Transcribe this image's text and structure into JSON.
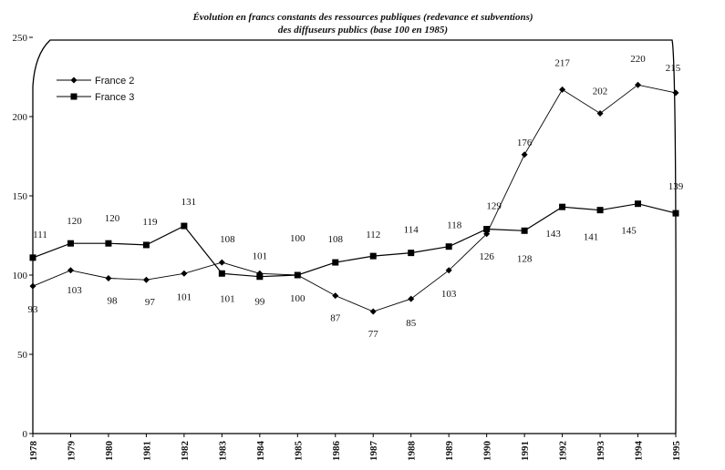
{
  "chart_data": {
    "type": "line",
    "title": "Évolution en francs constants des ressources publiques (redevance et subventions)",
    "subtitle": "des diffuseurs publics (base 100 en 1985)",
    "xlabel": "",
    "ylabel": "",
    "ylim": [
      0,
      250
    ],
    "yticks": [
      "0",
      "50",
      "100",
      "150",
      "200",
      "250"
    ],
    "categories": [
      "1978",
      "1979",
      "1980",
      "1981",
      "1982",
      "1983",
      "1984",
      "1985",
      "1986",
      "1987",
      "1988",
      "1989",
      "1990",
      "1991",
      "1992",
      "1993",
      "1994",
      "1995"
    ],
    "grid": false,
    "legend_position": "top-left",
    "series": [
      {
        "name": "France 2",
        "marker": "diamond",
        "values": [
          93,
          103,
          98,
          97,
          101,
          108,
          101,
          100,
          87,
          77,
          85,
          103,
          126,
          176,
          217,
          202,
          220,
          215
        ]
      },
      {
        "name": "France 3",
        "marker": "square",
        "values": [
          111,
          120,
          120,
          119,
          131,
          101,
          99,
          100,
          108,
          112,
          114,
          118,
          129,
          128,
          143,
          141,
          145,
          139
        ]
      }
    ]
  }
}
